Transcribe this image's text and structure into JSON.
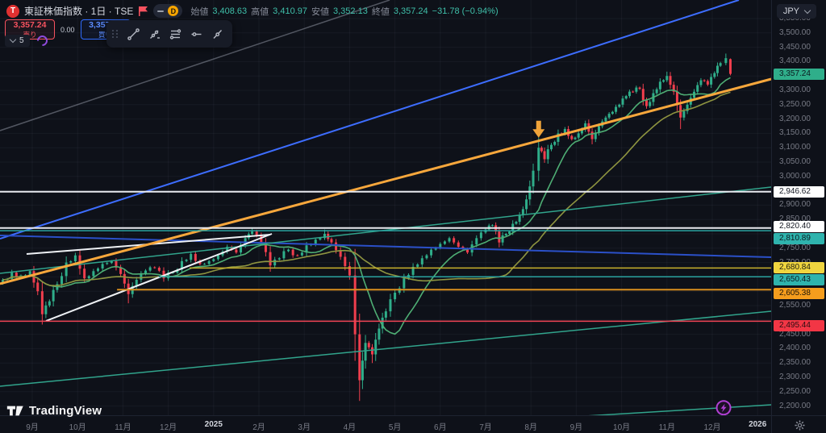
{
  "header": {
    "symbol": {
      "logo_letter": "T",
      "title": "東証株価指数 · 1日 · TSE"
    },
    "interval_badge": "D",
    "ohlc": {
      "open_label": "始値",
      "open_value": "3,408.63",
      "high_label": "高値",
      "high_value": "3,410.97",
      "low_label": "安値",
      "low_value": "3,352.13",
      "close_label": "終値",
      "close_value": "3,357.24",
      "change_value": "−31.78 (−0.94%)"
    },
    "currency_selector": {
      "label": "JPY"
    }
  },
  "trade_panel": {
    "sell": {
      "price": "3,357.24",
      "label": "売り"
    },
    "spread": "0.00",
    "buy": {
      "price": "3,357.24",
      "label": "買い"
    },
    "collapsed_items_count": "5"
  },
  "watermark": {
    "text": "TradingView"
  },
  "time_axis": {
    "ticks": [
      {
        "label": "9月"
      },
      {
        "label": "10月"
      },
      {
        "label": "11月"
      },
      {
        "label": "12月"
      },
      {
        "label": "2025",
        "bold": true
      },
      {
        "label": "2月"
      },
      {
        "label": "3月"
      },
      {
        "label": "4月"
      },
      {
        "label": "5月"
      },
      {
        "label": "6月"
      },
      {
        "label": "7月"
      },
      {
        "label": "8月"
      },
      {
        "label": "9月"
      },
      {
        "label": "10月"
      },
      {
        "label": "11月"
      },
      {
        "label": "12月"
      },
      {
        "label": "2026",
        "bold": true
      }
    ]
  },
  "price_axis": {
    "min": 2200,
    "max": 3550,
    "step": 50,
    "hidden_ticks": [
      3350,
      2950,
      2800,
      2650,
      2600,
      2500
    ],
    "current_price": {
      "text": "3,357.24",
      "bg": "#2fae8a",
      "fg": "#0c1a20"
    }
  },
  "chart_data": {
    "type": "candlestick",
    "title": "東証株価指数 (TOPIX) · 1日 · TSE",
    "x_axis": {
      "unit": "month",
      "start": "2024-09",
      "end": "2026-01"
    },
    "y_axis": {
      "min": 2200,
      "max": 3550,
      "currency": "JPY"
    },
    "last_candle": {
      "open": 3408.63,
      "high": 3410.97,
      "low": 3352.13,
      "close": 3357.24,
      "change": -31.78,
      "change_pct": -0.94
    },
    "price_path_keypoints": [
      [
        -0.65,
        2640
      ],
      [
        -0.45,
        2665
      ],
      [
        -0.25,
        2655
      ],
      [
        -0.05,
        2670
      ],
      [
        0.12,
        2600
      ],
      [
        0.22,
        2520,
        2490
      ],
      [
        0.38,
        2565
      ],
      [
        0.55,
        2625
      ],
      [
        0.75,
        2700
      ],
      [
        0.95,
        2725
      ],
      [
        1.15,
        2645
      ],
      [
        1.35,
        2670
      ],
      [
        1.55,
        2695
      ],
      [
        1.75,
        2705
      ],
      [
        1.95,
        2660
      ],
      [
        2.12,
        2590,
        2558
      ],
      [
        2.3,
        2640
      ],
      [
        2.5,
        2672
      ],
      [
        2.7,
        2682
      ],
      [
        2.9,
        2645
      ],
      [
        3.1,
        2665
      ],
      [
        3.3,
        2705
      ],
      [
        3.5,
        2730
      ],
      [
        3.7,
        2695
      ],
      [
        3.9,
        2705
      ],
      [
        4.1,
        2725
      ],
      [
        4.3,
        2755
      ],
      [
        4.5,
        2735
      ],
      [
        4.7,
        2785
      ],
      [
        4.85,
        2808,
        null,
        2820
      ],
      [
        5.05,
        2770
      ],
      [
        5.25,
        2690,
        2668
      ],
      [
        5.45,
        2715
      ],
      [
        5.65,
        2745
      ],
      [
        5.85,
        2725
      ],
      [
        6.05,
        2760
      ],
      [
        6.25,
        2780
      ],
      [
        6.45,
        2800,
        null,
        2815
      ],
      [
        6.6,
        2770
      ],
      [
        6.8,
        2720
      ],
      [
        7.0,
        2655
      ],
      [
        7.12,
        2450
      ],
      [
        7.22,
        2290,
        2230
      ],
      [
        7.35,
        2420
      ],
      [
        7.5,
        2380,
        2350
      ],
      [
        7.65,
        2470
      ],
      [
        7.8,
        2530
      ],
      [
        8.0,
        2595
      ],
      [
        8.2,
        2645
      ],
      [
        8.4,
        2685
      ],
      [
        8.6,
        2715
      ],
      [
        8.8,
        2745
      ],
      [
        9.0,
        2765
      ],
      [
        9.2,
        2785
      ],
      [
        9.4,
        2755
      ],
      [
        9.6,
        2735
      ],
      [
        9.8,
        2785
      ],
      [
        10.0,
        2815
      ],
      [
        10.15,
        2830
      ],
      [
        10.3,
        2770
      ],
      [
        10.45,
        2800
      ],
      [
        10.6,
        2835
      ],
      [
        10.75,
        2865
      ],
      [
        10.9,
        2920
      ],
      [
        11.05,
        3020
      ],
      [
        11.17,
        3100
      ],
      [
        11.3,
        3060
      ],
      [
        11.45,
        3110
      ],
      [
        11.6,
        3150
      ],
      [
        11.75,
        3165
      ],
      [
        11.9,
        3130
      ],
      [
        12.05,
        3150
      ],
      [
        12.2,
        3185
      ],
      [
        12.35,
        3130,
        3112
      ],
      [
        12.5,
        3175
      ],
      [
        12.65,
        3205
      ],
      [
        12.8,
        3225
      ],
      [
        12.95,
        3250
      ],
      [
        13.1,
        3280
      ],
      [
        13.25,
        3295
      ],
      [
        13.4,
        3305
      ],
      [
        13.55,
        3245
      ],
      [
        13.7,
        3290
      ],
      [
        13.85,
        3330
      ],
      [
        14.0,
        3350,
        null,
        3365
      ],
      [
        14.15,
        3295
      ],
      [
        14.3,
        3205,
        3165
      ],
      [
        14.45,
        3250
      ],
      [
        14.6,
        3295
      ],
      [
        14.75,
        3335
      ],
      [
        14.9,
        3320
      ],
      [
        15.05,
        3360
      ],
      [
        15.18,
        3395
      ],
      [
        15.3,
        3412,
        null,
        3428
      ],
      [
        15.4,
        3357.24,
        3352.13,
        3410.97
      ]
    ],
    "moving_averages": [
      {
        "name": "ma-short",
        "window": 12,
        "color": "#4eae74"
      },
      {
        "name": "ma-long",
        "window": 38,
        "color": "#8e9440"
      }
    ],
    "horizontal_levels": [
      {
        "price": 2946.62,
        "line_color": "#e8eaf0",
        "badge_bg": "#ffffff",
        "badge_fg": "#131722",
        "width": 2,
        "label_dy": 0
      },
      {
        "price": 2820.4,
        "line_color": "#e8eaf0",
        "badge_bg": "#ffffff",
        "badge_fg": "#131722",
        "width": 2,
        "label_dy": -2
      },
      {
        "price": 2810.89,
        "line_color": "#2aa3a0",
        "badge_bg": "#2fb3ad",
        "badge_fg": "#0c1a20",
        "width": 1.5,
        "label_dy": 10
      },
      {
        "price": 2680.84,
        "line_color": "#c9b22c",
        "badge_bg": "#f0d53f",
        "badge_fg": "#1c1c10",
        "width": 1.5,
        "t_start": 3.47,
        "label_dy": 0
      },
      {
        "price": 2650.43,
        "line_color": "#2aa3a0",
        "badge_bg": "#2fb3ad",
        "badge_fg": "#0c1a20",
        "width": 1.5,
        "t_start": 2.79,
        "label_dy": 4
      },
      {
        "price": 2605.38,
        "line_color": "#d98f1f",
        "badge_bg": "#f59d1d",
        "badge_fg": "#1c1408",
        "width": 2,
        "t_start": 1.87,
        "label_dy": 5
      },
      {
        "price": 2495.44,
        "line_color": "#ef4455",
        "badge_bg": "#f23645",
        "badge_fg": "#2a0d12",
        "width": 1.5,
        "label_dy": 6
      }
    ],
    "trend_lines": [
      {
        "name": "gray-diagonal",
        "t1": -0.712,
        "p1": 3159.6,
        "t2": 7.883,
        "p2": 3614.6,
        "color": "rgba(150,156,170,0.5)",
        "width": 1.5
      },
      {
        "name": "blue-steep",
        "t1": -0.712,
        "p1": 2783.1,
        "t2": 15.587,
        "p2": 3614.6,
        "color": "#3d6dff",
        "width": 2
      },
      {
        "name": "blue-shallow",
        "t1": -0.712,
        "p1": 2794.4,
        "t2": 16.3,
        "p2": 2718.5,
        "color": "#2b50c8",
        "width": 2
      },
      {
        "name": "teal-upper",
        "t1": -0.712,
        "p1": 2662.4,
        "t2": 16.3,
        "p2": 2962.9,
        "color": "#31a48c",
        "width": 1.5
      },
      {
        "name": "teal-mid",
        "t1": -0.712,
        "p1": 2269.0,
        "t2": 16.3,
        "p2": 2530.3,
        "color": "#31a48c",
        "width": 1.5
      },
      {
        "name": "teal-bottom",
        "t1": -0.712,
        "p1": 2041.6,
        "t2": 16.3,
        "p2": 2204.5,
        "color": "#31a48c",
        "width": 1.5
      },
      {
        "name": "white-wedge-upper",
        "t1": -0.125,
        "p1": 2729.8,
        "t2": 5.249,
        "p2": 2797.2,
        "color": "#eef1f5",
        "width": 2
      },
      {
        "name": "white-wedge-lower",
        "t1": 0.302,
        "p1": 2496.6,
        "t2": 5.285,
        "p2": 2800.0,
        "color": "#eef1f5",
        "width": 2
      },
      {
        "name": "orange-trend",
        "t1": -0.712,
        "p1": 2626.0,
        "t2": 16.3,
        "p2": 3339.3,
        "color": "#f7a73c",
        "width": 3
      }
    ],
    "markers": [
      {
        "type": "arrow-down",
        "t": 11.17,
        "price": 3135,
        "color": "#f0a43a"
      },
      {
        "type": "lightning-badge",
        "t": 15.25,
        "price": 2194,
        "ring_color": "#b13fd4"
      }
    ]
  },
  "colors": {
    "bg": "#0e1119",
    "up": "#2fae8a",
    "down": "#f03e4d",
    "grid": "rgba(140,146,162,0.08)",
    "axis_text": "#787b86",
    "text_bright": "#d1d4dc"
  }
}
